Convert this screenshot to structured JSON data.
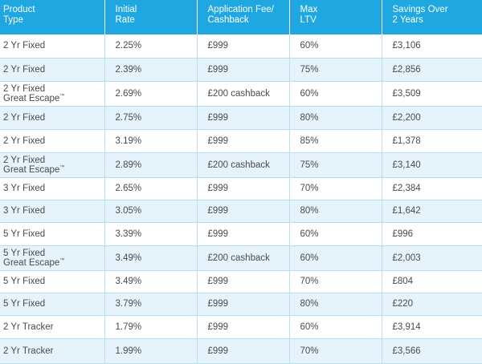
{
  "table": {
    "headers": [
      {
        "line1": "Product",
        "line2": "Type"
      },
      {
        "line1": "Initial",
        "line2": "Rate"
      },
      {
        "line1": "Application Fee/",
        "line2": "Cashback"
      },
      {
        "line1": "Max",
        "line2": "LTV"
      },
      {
        "line1": "Savings Over",
        "line2": "2 Years"
      }
    ],
    "rows": [
      {
        "product": "2 Yr Fixed",
        "product_sub": "",
        "rate": "2.25%",
        "fee": "£999",
        "ltv": "60%",
        "savings": "£3,106",
        "height": 29
      },
      {
        "product": "2 Yr Fixed",
        "product_sub": "",
        "rate": "2.39%",
        "fee": "£999",
        "ltv": "75%",
        "savings": "£2,856",
        "height": 29
      },
      {
        "product": "2 Yr Fixed",
        "product_sub": "Great Escape",
        "rate": "2.69%",
        "fee": "£200 cashback",
        "ltv": "60%",
        "savings": "£3,509",
        "height": 31
      },
      {
        "product": "2 Yr Fixed",
        "product_sub": "",
        "rate": "2.75%",
        "fee": "£999",
        "ltv": "80%",
        "savings": "£2,200",
        "height": 29
      },
      {
        "product": "2 Yr Fixed",
        "product_sub": "",
        "rate": "3.19%",
        "fee": "£999",
        "ltv": "85%",
        "savings": "£1,378",
        "height": 29
      },
      {
        "product": "2 Yr Fixed",
        "product_sub": "Great Escape",
        "rate": "2.89%",
        "fee": "£200 cashback",
        "ltv": "75%",
        "savings": "£3,140",
        "height": 31
      },
      {
        "product": "3 Yr Fixed",
        "product_sub": "",
        "rate": "2.65%",
        "fee": "£999",
        "ltv": "70%",
        "savings": "£2,384",
        "height": 28
      },
      {
        "product": "3 Yr Fixed",
        "product_sub": "",
        "rate": "3.05%",
        "fee": "£999",
        "ltv": "80%",
        "savings": "£1,642",
        "height": 28
      },
      {
        "product": "5 Yr Fixed",
        "product_sub": "",
        "rate": "3.39%",
        "fee": "£999",
        "ltv": "60%",
        "savings": "£996",
        "height": 29
      },
      {
        "product": "5 Yr Fixed",
        "product_sub": "Great Escape",
        "rate": "3.49%",
        "fee": "£200 cashback",
        "ltv": "60%",
        "savings": "£2,003",
        "height": 31
      },
      {
        "product": "5 Yr Fixed",
        "product_sub": "",
        "rate": "3.49%",
        "fee": "£999",
        "ltv": "70%",
        "savings": "£804",
        "height": 28
      },
      {
        "product": "5 Yr Fixed",
        "product_sub": "",
        "rate": "3.79%",
        "fee": "£999",
        "ltv": "80%",
        "savings": "£220",
        "height": 28
      },
      {
        "product": "2 Yr Tracker",
        "product_sub": "",
        "rate": "1.79%",
        "fee": "£999",
        "ltv": "60%",
        "savings": "£3,914",
        "height": 29
      },
      {
        "product": "2 Yr Tracker",
        "product_sub": "",
        "rate": "1.99%",
        "fee": "£999",
        "ltv": "70%",
        "savings": "£3,566",
        "height": 31
      }
    ],
    "trademark": "™",
    "colors": {
      "header_bg": "#1ea7e1",
      "header_text": "#ffffff",
      "row_alt_bg": "#e5f4fc",
      "row_bg": "#ffffff",
      "grid_line": "#b6dff3",
      "body_text": "#4a4a4a"
    }
  }
}
